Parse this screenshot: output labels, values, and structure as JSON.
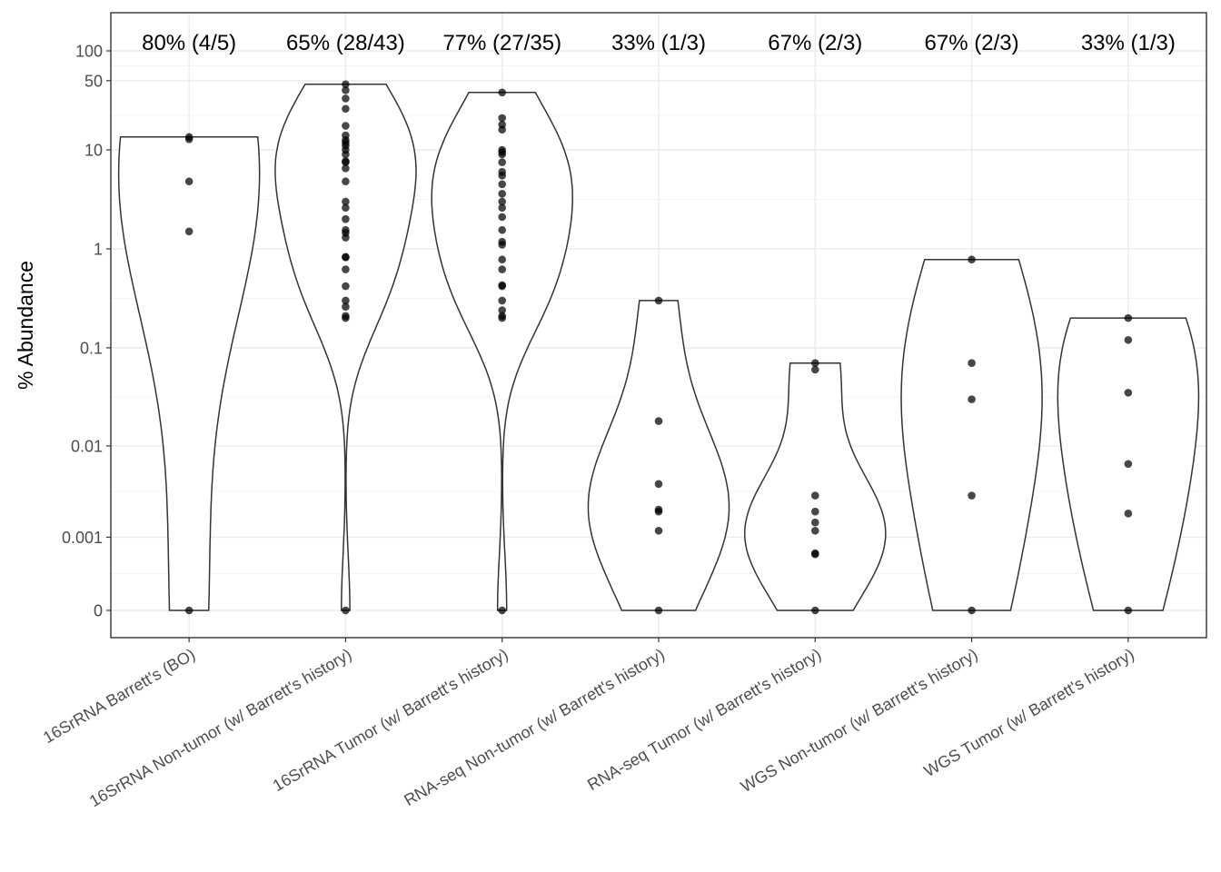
{
  "chart_data": {
    "type": "violin",
    "title": "",
    "xlabel": "",
    "ylabel": "% Abundance",
    "y_scale": "pseudo-log",
    "y_ticks": [
      0,
      0.001,
      0.01,
      0.1,
      1,
      10,
      50,
      100
    ],
    "y_tick_labels": [
      "0",
      "0.001",
      "0.01",
      "0.1",
      "1",
      "10",
      "50",
      "100"
    ],
    "grid": true,
    "legend": "none",
    "categories": [
      "16SrRNA Barrett's (BO)",
      "16SrRNA Non-tumor (w/ Barrett's history)",
      "16SrRNA Tumor (w/ Barrett's history)",
      "RNA-seq Non-tumor (w/ Barrett's history)",
      "RNA-seq Tumor (w/ Barrett's history)",
      "WGS Non-tumor (w/ Barrett's history)",
      "WGS Tumor (w/ Barrett's history)"
    ],
    "annotations": [
      "80% (4/5)",
      "65% (28/43)",
      "77% (27/35)",
      "33% (1/3)",
      "67% (2/3)",
      "67% (2/3)",
      "33% (1/3)"
    ],
    "series": [
      {
        "values": [
          0,
          1.5,
          4.8,
          12.8,
          13.5
        ]
      },
      {
        "values": [
          0,
          0.2,
          0.21,
          0.26,
          0.3,
          0.42,
          0.62,
          0.82,
          0.83,
          1.3,
          1.45,
          1.55,
          2.0,
          2.6,
          3.0,
          4.8,
          6.5,
          7.5,
          7.7,
          9.0,
          10.0,
          11.0,
          11.8,
          12.5,
          14.0,
          17.5,
          26.0,
          33.0,
          40.0,
          46.0
        ]
      },
      {
        "values": [
          0,
          0.2,
          0.21,
          0.24,
          0.3,
          0.42,
          0.43,
          0.62,
          0.78,
          1.1,
          1.18,
          1.55,
          2.1,
          2.6,
          3.0,
          3.6,
          4.5,
          5.5,
          6.0,
          7.5,
          9.0,
          9.5,
          10.0,
          16.0,
          18.0,
          21.0,
          38.0
        ]
      },
      {
        "values": [
          0,
          0.0012,
          0.002,
          0.0021,
          0.004,
          0.018,
          0.3
        ]
      },
      {
        "values": [
          0,
          0.0006,
          0.00062,
          0.0012,
          0.0015,
          0.002,
          0.003,
          0.06,
          0.07
        ]
      },
      {
        "values": [
          0,
          0.003,
          0.03,
          0.07,
          0.78
        ]
      },
      {
        "values": [
          0,
          0.0019,
          0.0065,
          0.035,
          0.12,
          0.2
        ]
      }
    ]
  }
}
